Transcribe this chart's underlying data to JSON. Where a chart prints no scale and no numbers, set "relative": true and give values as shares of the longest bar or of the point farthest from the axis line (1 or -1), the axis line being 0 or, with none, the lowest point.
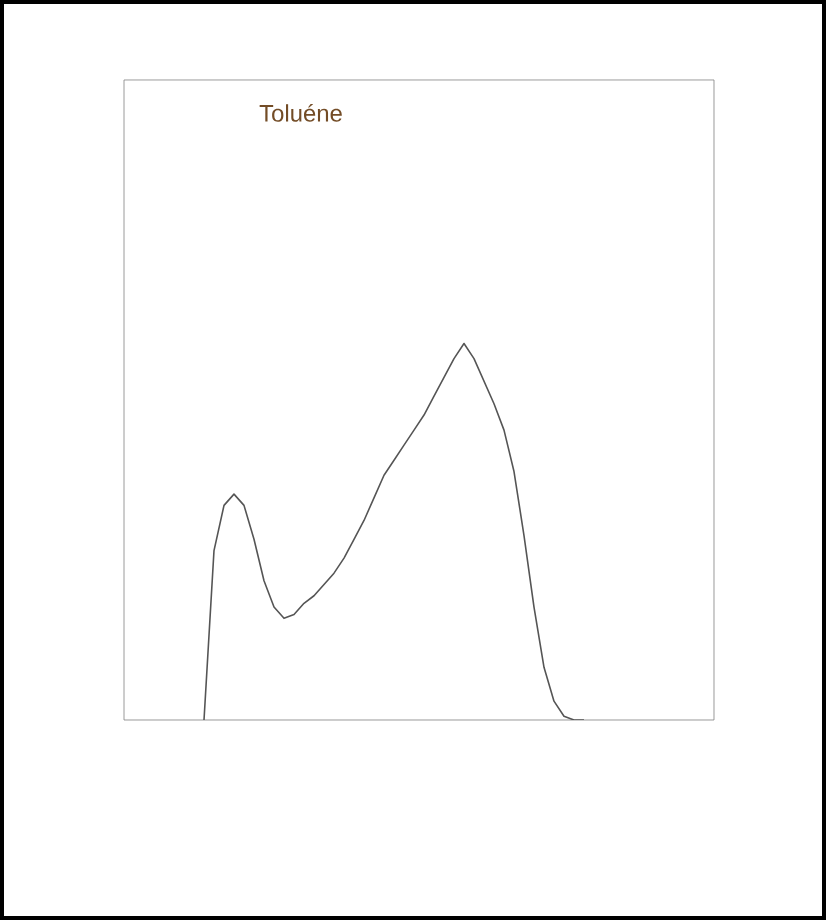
{
  "chart_data": {
    "type": "line",
    "title": "Toluéne",
    "relative": true,
    "color": "#555555",
    "categories": [
      null,
      null,
      null,
      null,
      null,
      null,
      null,
      null,
      null,
      null,
      null,
      null,
      null,
      null,
      null,
      null,
      null,
      null,
      null,
      null,
      null,
      null,
      null,
      null,
      null,
      null,
      null,
      null,
      null,
      null,
      null,
      null,
      null,
      null,
      null,
      null,
      null,
      null,
      null,
      null,
      null,
      null,
      null,
      null,
      null,
      null,
      null,
      null,
      null,
      null,
      null,
      null,
      null,
      null,
      null,
      null,
      null,
      null,
      null,
      null
    ],
    "values": [
      null,
      null,
      null,
      null,
      null,
      null,
      null,
      null,
      0,
      0.45,
      0.57,
      0.6,
      0.57,
      0.48,
      0.37,
      0.3,
      0.27,
      0.28,
      0.31,
      0.33,
      0.36,
      0.39,
      0.43,
      0.48,
      0.53,
      0.59,
      0.65,
      0.69,
      0.73,
      0.77,
      0.81,
      0.86,
      0.91,
      0.96,
      1,
      0.96,
      0.9,
      0.84,
      0.77,
      0.66,
      0.49,
      0.3,
      0.14,
      0.05,
      0.01,
      0,
      0,
      null,
      null,
      null,
      null,
      null,
      null,
      null,
      null,
      null,
      null,
      null,
      null,
      null
    ]
  }
}
